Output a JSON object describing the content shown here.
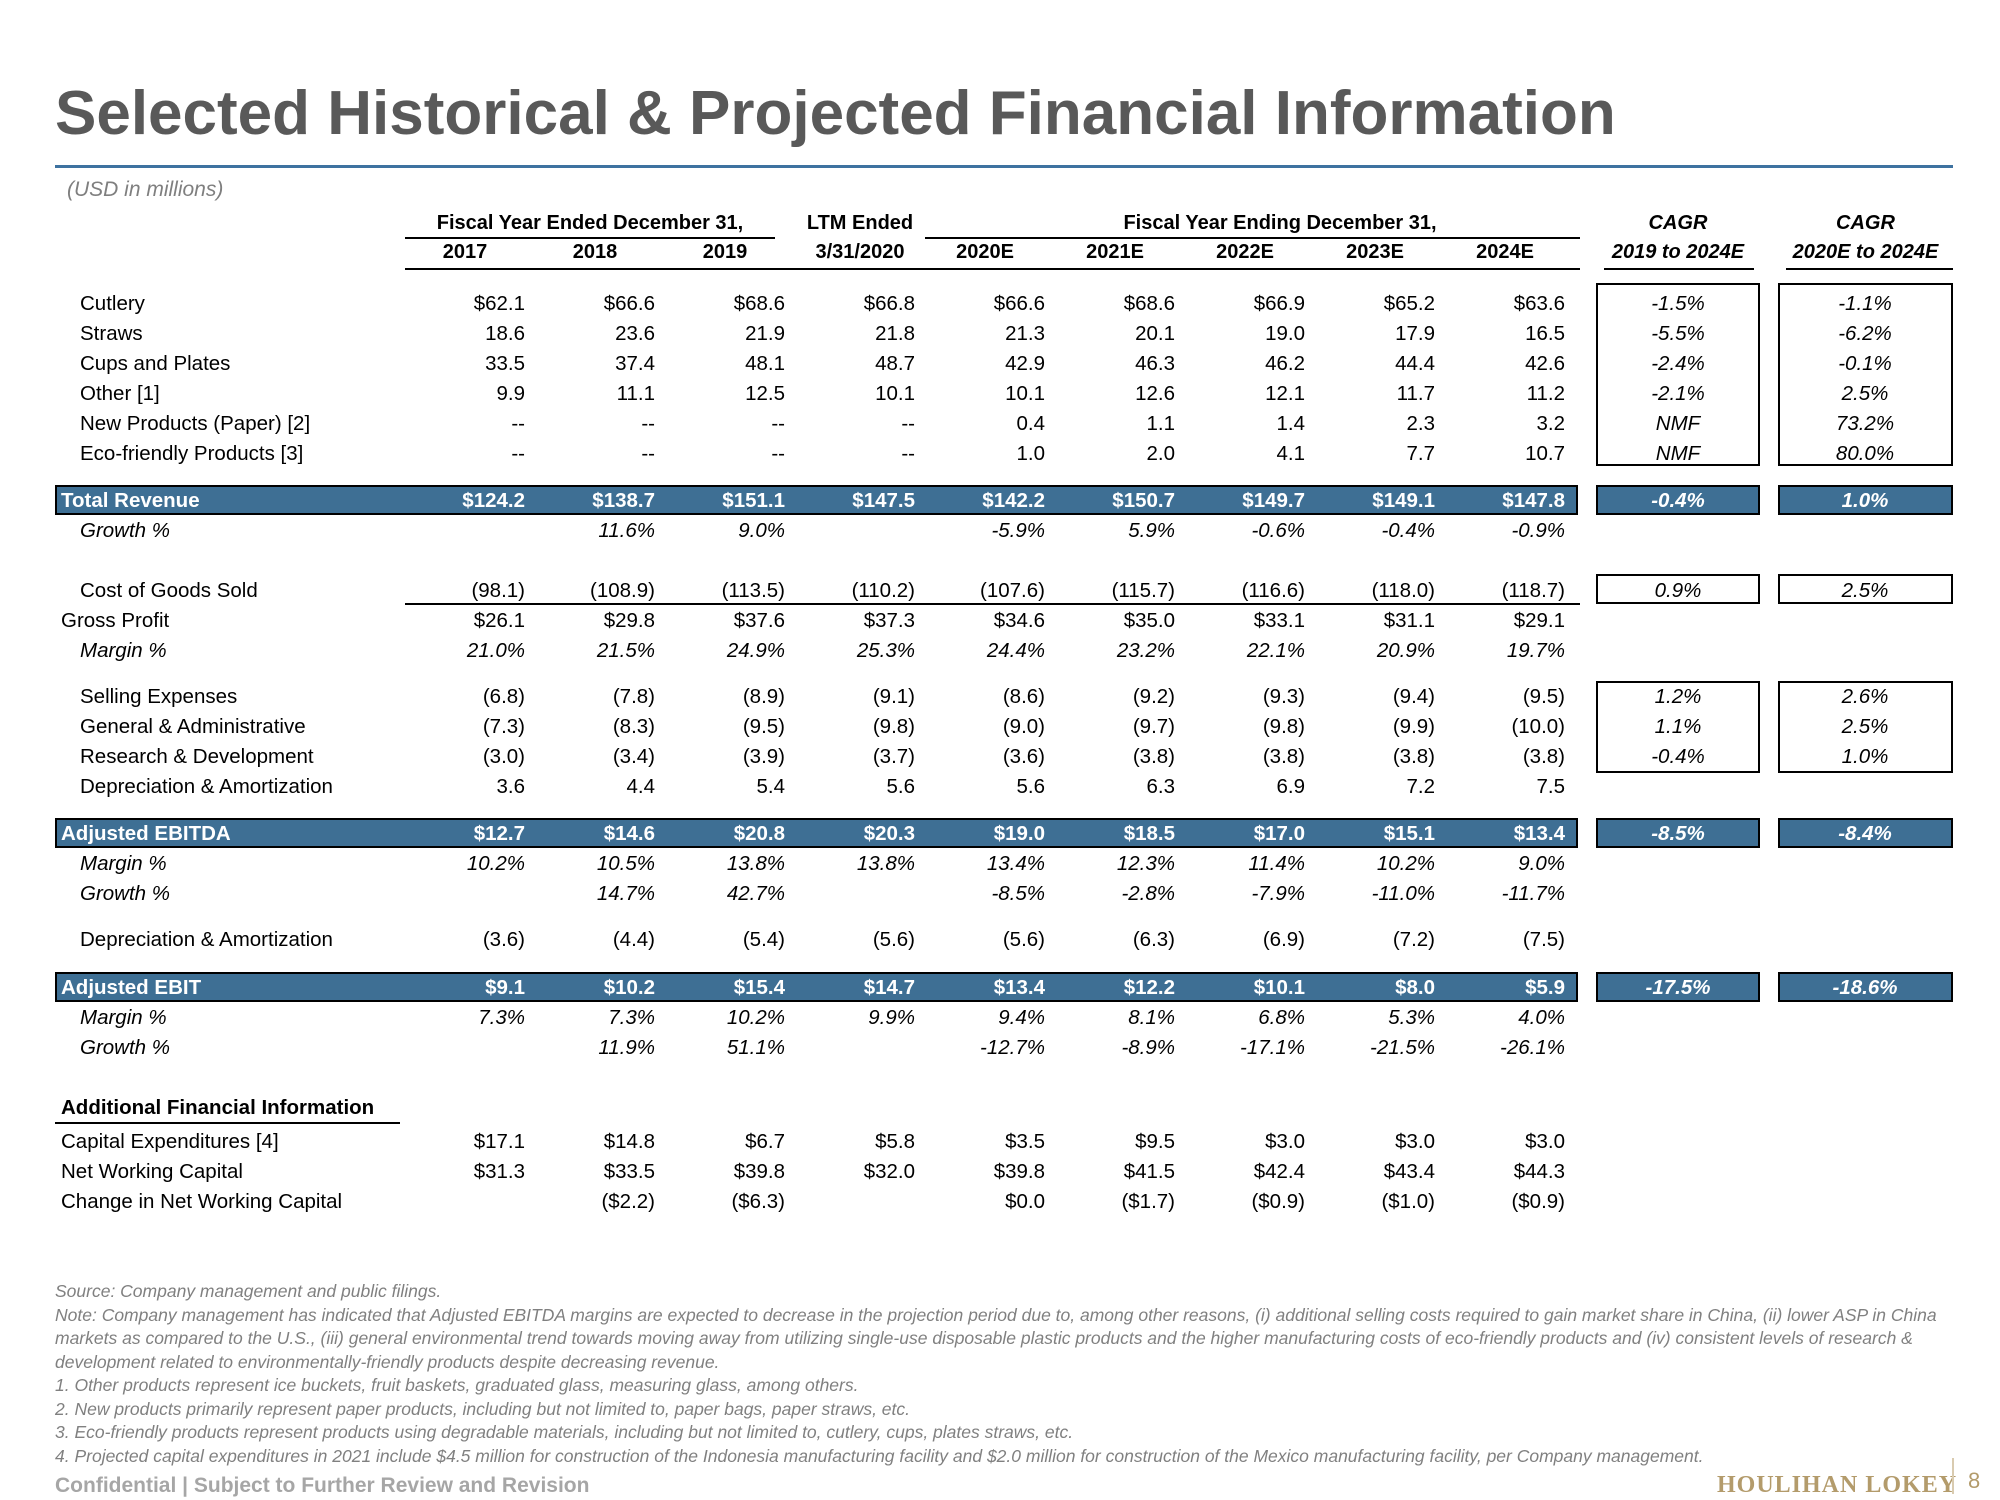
{
  "title": "Selected Historical & Projected Financial Information",
  "units": "(USD in millions)",
  "headers": {
    "group1": "Fiscal Year Ended December 31,",
    "group2": "LTM Ended",
    "group3": "Fiscal Year Ending December 31,",
    "cagr1_top": "CAGR",
    "cagr1_bottom": "2019 to 2024E",
    "cagr2_top": "CAGR",
    "cagr2_bottom": "2020E to 2024E",
    "columns": [
      "2017",
      "2018",
      "2019",
      "3/31/2020",
      "2020E",
      "2021E",
      "2022E",
      "2023E",
      "2024E"
    ]
  },
  "rows": [
    {
      "label": "Cutlery",
      "values": [
        "$62.1",
        "$66.6",
        "$68.6",
        "$66.8",
        "$66.6",
        "$68.6",
        "$66.9",
        "$65.2",
        "$63.6"
      ],
      "cagr": [
        "-1.5%",
        "-1.1%"
      ]
    },
    {
      "label": "Straws",
      "values": [
        "18.6",
        "23.6",
        "21.9",
        "21.8",
        "21.3",
        "20.1",
        "19.0",
        "17.9",
        "16.5"
      ],
      "cagr": [
        "-5.5%",
        "-6.2%"
      ]
    },
    {
      "label": "Cups and Plates",
      "values": [
        "33.5",
        "37.4",
        "48.1",
        "48.7",
        "42.9",
        "46.3",
        "46.2",
        "44.4",
        "42.6"
      ],
      "cagr": [
        "-2.4%",
        "-0.1%"
      ]
    },
    {
      "label": "Other [1]",
      "values": [
        "9.9",
        "11.1",
        "12.5",
        "10.1",
        "10.1",
        "12.6",
        "12.1",
        "11.7",
        "11.2"
      ],
      "cagr": [
        "-2.1%",
        "2.5%"
      ]
    },
    {
      "label": "New Products (Paper) [2]",
      "values": [
        "--",
        "--",
        "--",
        "--",
        "0.4",
        "1.1",
        "1.4",
        "2.3",
        "3.2"
      ],
      "cagr": [
        "NMF",
        "73.2%"
      ]
    },
    {
      "label": "Eco-friendly Products [3]",
      "values": [
        "--",
        "--",
        "--",
        "--",
        "1.0",
        "2.0",
        "4.1",
        "7.7",
        "10.7"
      ],
      "cagr": [
        "NMF",
        "80.0%"
      ]
    },
    {
      "label": "Total Revenue",
      "values": [
        "$124.2",
        "$138.7",
        "$151.1",
        "$147.5",
        "$142.2",
        "$150.7",
        "$149.7",
        "$149.1",
        "$147.8"
      ],
      "cagr": [
        "-0.4%",
        "1.0%"
      ]
    },
    {
      "label": "Growth %",
      "values": [
        "",
        "11.6%",
        "9.0%",
        "",
        "-5.9%",
        "5.9%",
        "-0.6%",
        "-0.4%",
        "-0.9%"
      ],
      "cagr": [
        "",
        ""
      ]
    },
    {
      "label": "Cost of Goods Sold",
      "values": [
        "(98.1)",
        "(108.9)",
        "(113.5)",
        "(110.2)",
        "(107.6)",
        "(115.7)",
        "(116.6)",
        "(118.0)",
        "(118.7)"
      ],
      "cagr": [
        "0.9%",
        "2.5%"
      ]
    },
    {
      "label": "Gross Profit",
      "values": [
        "$26.1",
        "$29.8",
        "$37.6",
        "$37.3",
        "$34.6",
        "$35.0",
        "$33.1",
        "$31.1",
        "$29.1"
      ],
      "cagr": [
        "",
        ""
      ]
    },
    {
      "label": "Margin %",
      "values": [
        "21.0%",
        "21.5%",
        "24.9%",
        "25.3%",
        "24.4%",
        "23.2%",
        "22.1%",
        "20.9%",
        "19.7%"
      ],
      "cagr": [
        "",
        ""
      ]
    },
    {
      "label": "Selling Expenses",
      "values": [
        "(6.8)",
        "(7.8)",
        "(8.9)",
        "(9.1)",
        "(8.6)",
        "(9.2)",
        "(9.3)",
        "(9.4)",
        "(9.5)"
      ],
      "cagr": [
        "1.2%",
        "2.6%"
      ]
    },
    {
      "label": "General & Administrative",
      "values": [
        "(7.3)",
        "(8.3)",
        "(9.5)",
        "(9.8)",
        "(9.0)",
        "(9.7)",
        "(9.8)",
        "(9.9)",
        "(10.0)"
      ],
      "cagr": [
        "1.1%",
        "2.5%"
      ]
    },
    {
      "label": "Research & Development",
      "values": [
        "(3.0)",
        "(3.4)",
        "(3.9)",
        "(3.7)",
        "(3.6)",
        "(3.8)",
        "(3.8)",
        "(3.8)",
        "(3.8)"
      ],
      "cagr": [
        "-0.4%",
        "1.0%"
      ]
    },
    {
      "label": "Depreciation & Amortization",
      "values": [
        "3.6",
        "4.4",
        "5.4",
        "5.6",
        "5.6",
        "6.3",
        "6.9",
        "7.2",
        "7.5"
      ],
      "cagr": [
        "",
        ""
      ]
    },
    {
      "label": "Adjusted EBITDA",
      "values": [
        "$12.7",
        "$14.6",
        "$20.8",
        "$20.3",
        "$19.0",
        "$18.5",
        "$17.0",
        "$15.1",
        "$13.4"
      ],
      "cagr": [
        "-8.5%",
        "-8.4%"
      ]
    },
    {
      "label": "Margin %",
      "values": [
        "10.2%",
        "10.5%",
        "13.8%",
        "13.8%",
        "13.4%",
        "12.3%",
        "11.4%",
        "10.2%",
        "9.0%"
      ],
      "cagr": [
        "",
        ""
      ]
    },
    {
      "label": "Growth %",
      "values": [
        "",
        "14.7%",
        "42.7%",
        "",
        "-8.5%",
        "-2.8%",
        "-7.9%",
        "-11.0%",
        "-11.7%"
      ],
      "cagr": [
        "",
        ""
      ]
    },
    {
      "label": "Depreciation & Amortization",
      "values": [
        "(3.6)",
        "(4.4)",
        "(5.4)",
        "(5.6)",
        "(5.6)",
        "(6.3)",
        "(6.9)",
        "(7.2)",
        "(7.5)"
      ],
      "cagr": [
        "",
        ""
      ]
    },
    {
      "label": "Adjusted EBIT",
      "values": [
        "$9.1",
        "$10.2",
        "$15.4",
        "$14.7",
        "$13.4",
        "$12.2",
        "$10.1",
        "$8.0",
        "$5.9"
      ],
      "cagr": [
        "-17.5%",
        "-18.6%"
      ]
    },
    {
      "label": "Margin %",
      "values": [
        "7.3%",
        "7.3%",
        "10.2%",
        "9.9%",
        "9.4%",
        "8.1%",
        "6.8%",
        "5.3%",
        "4.0%"
      ],
      "cagr": [
        "",
        ""
      ]
    },
    {
      "label": "Growth %",
      "values": [
        "",
        "11.9%",
        "51.1%",
        "",
        "-12.7%",
        "-8.9%",
        "-17.1%",
        "-21.5%",
        "-26.1%"
      ],
      "cagr": [
        "",
        ""
      ]
    },
    {
      "label": "Capital Expenditures [4]",
      "values": [
        "$17.1",
        "$14.8",
        "$6.7",
        "$5.8",
        "$3.5",
        "$9.5",
        "$3.0",
        "$3.0",
        "$3.0"
      ],
      "cagr": [
        "",
        ""
      ]
    },
    {
      "label": "Net Working Capital",
      "values": [
        "$31.3",
        "$33.5",
        "$39.8",
        "$32.0",
        "$39.8",
        "$41.5",
        "$42.4",
        "$43.4",
        "$44.3"
      ],
      "cagr": [
        "",
        ""
      ]
    },
    {
      "label": "Change in Net Working Capital",
      "values": [
        "",
        "($2.2)",
        "($6.3)",
        "",
        "$0.0",
        "($1.7)",
        "($0.9)",
        "($1.0)",
        "($0.9)"
      ],
      "cagr": [
        "",
        ""
      ]
    }
  ],
  "additional_header": "Additional Financial Information",
  "notes": {
    "source": "Source: Company management and public filings.",
    "note": "Note: Company management has indicated that Adjusted EBITDA margins are expected to decrease in the projection period due to, among other reasons, (i) additional selling costs required to gain market share in China, (ii) lower ASP in China markets as compared to the U.S., (iii) general environmental trend towards moving away from utilizing single-use disposable plastic products and the higher manufacturing costs of eco-friendly products and (iv) consistent levels of research & development related to environmentally-friendly products despite decreasing revenue.",
    "footnotes": [
      "1.  Other products represent ice buckets, fruit baskets, graduated glass, measuring glass, among others.",
      "2.  New products primarily represent paper products, including but not limited to, paper bags, paper straws, etc.",
      "3.  Eco-friendly products represent products using degradable materials, including but not limited to, cutlery, cups, plates straws, etc.",
      "4.  Projected capital expenditures in 2021 include $4.5 million for construction of the Indonesia manufacturing facility and $2.0 million for construction of the Mexico manufacturing facility, per Company management."
    ]
  },
  "footer": {
    "confidential": "Confidential | Subject to Further Review and Revision",
    "logo": "HOULIHAN LOKEY",
    "page": "8"
  }
}
